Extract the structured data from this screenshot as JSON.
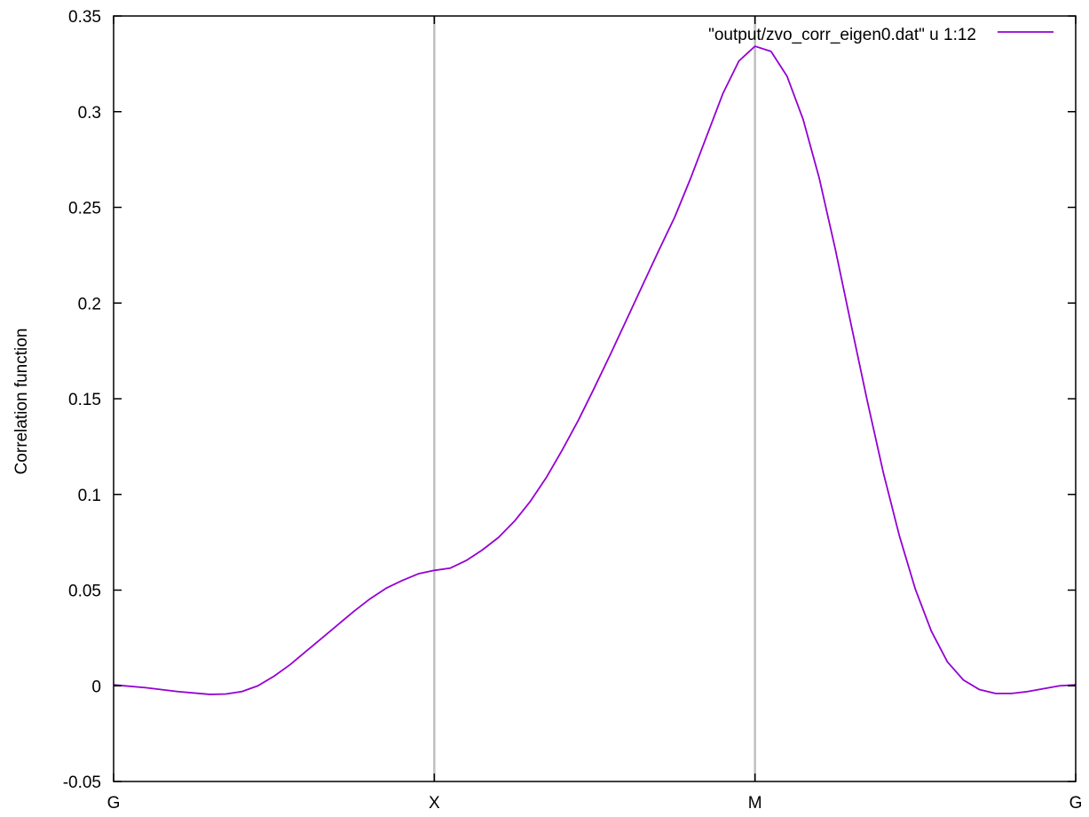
{
  "chart_data": {
    "type": "line",
    "title": "",
    "xlabel": "",
    "ylabel": "Correlation function",
    "xlim": [
      0,
      3
    ],
    "ylim": [
      -0.05,
      0.35
    ],
    "x_ticks": [
      {
        "value": 0,
        "label": "G"
      },
      {
        "value": 1,
        "label": "X"
      },
      {
        "value": 2,
        "label": "M"
      },
      {
        "value": 3,
        "label": "G"
      }
    ],
    "y_ticks": [
      {
        "value": -0.05,
        "label": "-0.05"
      },
      {
        "value": 0,
        "label": "0"
      },
      {
        "value": 0.05,
        "label": "0.05"
      },
      {
        "value": 0.1,
        "label": "0.1"
      },
      {
        "value": 0.15,
        "label": "0.15"
      },
      {
        "value": 0.2,
        "label": "0.2"
      },
      {
        "value": 0.25,
        "label": "0.25"
      },
      {
        "value": 0.3,
        "label": "0.3"
      },
      {
        "value": 0.35,
        "label": "0.35"
      }
    ],
    "vertical_lines_at": [
      1,
      2
    ],
    "vertical_line_color": "#c0c0c0",
    "grid": false,
    "legend_position": "top-right",
    "series": [
      {
        "name": "\"output/zvo_corr_eigen0.dat\" u 1:12",
        "color": "#9400d3",
        "points": [
          [
            0,
            0.0005
          ],
          [
            0.1,
            -0.001
          ],
          [
            0.2,
            -0.003
          ],
          [
            0.3,
            -0.0045
          ],
          [
            0.35,
            -0.0043
          ],
          [
            0.4,
            -0.003
          ],
          [
            0.45,
            0.0
          ],
          [
            0.5,
            0.005
          ],
          [
            0.55,
            0.011
          ],
          [
            0.6,
            0.018
          ],
          [
            0.65,
            0.025
          ],
          [
            0.7,
            0.032
          ],
          [
            0.75,
            0.039
          ],
          [
            0.8,
            0.0455
          ],
          [
            0.85,
            0.051
          ],
          [
            0.9,
            0.055
          ],
          [
            0.95,
            0.0585
          ],
          [
            1.0,
            0.0603
          ],
          [
            1.05,
            0.0615
          ],
          [
            1.1,
            0.0655
          ],
          [
            1.15,
            0.071
          ],
          [
            1.2,
            0.0775
          ],
          [
            1.25,
            0.086
          ],
          [
            1.3,
            0.0965
          ],
          [
            1.35,
            0.109
          ],
          [
            1.4,
            0.1235
          ],
          [
            1.45,
            0.139
          ],
          [
            1.5,
            0.156
          ],
          [
            1.55,
            0.1735
          ],
          [
            1.6,
            0.1915
          ],
          [
            1.65,
            0.2095
          ],
          [
            1.7,
            0.2275
          ],
          [
            1.75,
            0.245
          ],
          [
            1.8,
            0.2655
          ],
          [
            1.85,
            0.2875
          ],
          [
            1.9,
            0.3095
          ],
          [
            1.95,
            0.3265
          ],
          [
            2.0,
            0.3342
          ],
          [
            2.05,
            0.3315
          ],
          [
            2.1,
            0.3185
          ],
          [
            2.15,
            0.296
          ],
          [
            2.2,
            0.2655
          ],
          [
            2.25,
            0.2285
          ],
          [
            2.3,
            0.1885
          ],
          [
            2.35,
            0.149
          ],
          [
            2.4,
            0.1115
          ],
          [
            2.45,
            0.0785
          ],
          [
            2.5,
            0.0505
          ],
          [
            2.55,
            0.0285
          ],
          [
            2.6,
            0.0125
          ],
          [
            2.65,
            0.003
          ],
          [
            2.7,
            -0.002
          ],
          [
            2.75,
            -0.004
          ],
          [
            2.8,
            -0.004
          ],
          [
            2.85,
            -0.003
          ],
          [
            2.9,
            -0.0015
          ],
          [
            2.95,
            0.0
          ],
          [
            3.0,
            0.0005
          ]
        ]
      }
    ]
  }
}
